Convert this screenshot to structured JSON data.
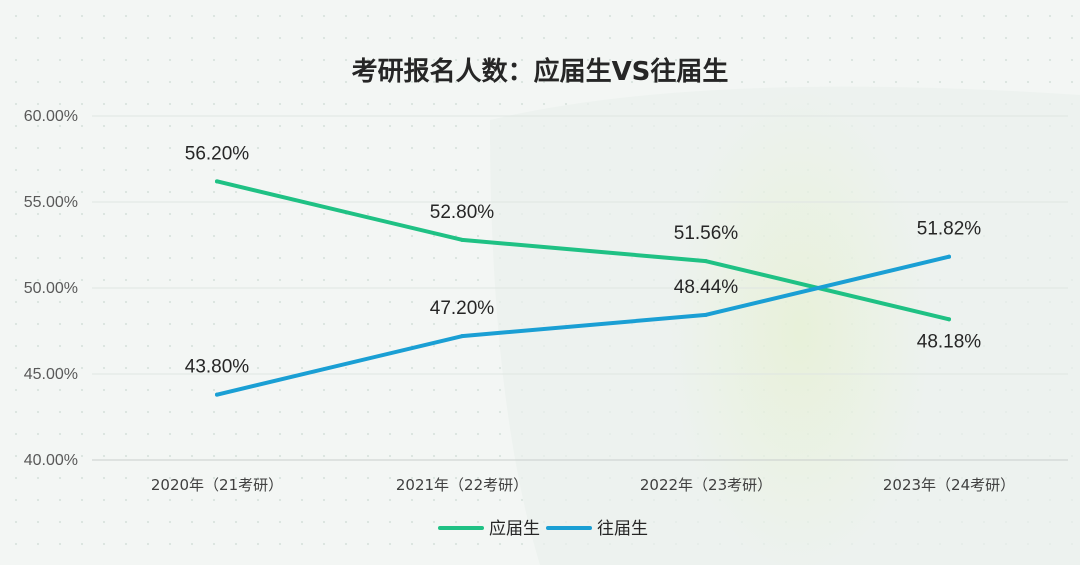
{
  "chart_data": {
    "type": "line",
    "title": "考研报名人数：应届生VS往届生",
    "categories": [
      "2020年（21考研）",
      "2021年（22考研）",
      "2022年（23考研）",
      "2023年（24考研）"
    ],
    "series": [
      {
        "name": "应届生",
        "color": "#1fc184",
        "values": [
          56.2,
          52.8,
          51.56,
          48.18
        ],
        "labels": [
          "56.20%",
          "52.80%",
          "51.56%",
          "48.18%"
        ]
      },
      {
        "name": "往届生",
        "color": "#1a9fd4",
        "values": [
          43.8,
          47.2,
          48.44,
          51.82
        ],
        "labels": [
          "43.80%",
          "47.20%",
          "48.44%",
          "51.82%"
        ]
      }
    ],
    "ylim": [
      40,
      60
    ],
    "yticks": [
      {
        "value": 60,
        "label": "60.00%"
      },
      {
        "value": 55,
        "label": "55.00%"
      },
      {
        "value": 50,
        "label": "50.00%"
      },
      {
        "value": 45,
        "label": "45.00%"
      },
      {
        "value": 40,
        "label": "40.00%"
      }
    ],
    "xlabel": "",
    "ylabel": "",
    "grid": true,
    "legend": "bottom-center"
  }
}
